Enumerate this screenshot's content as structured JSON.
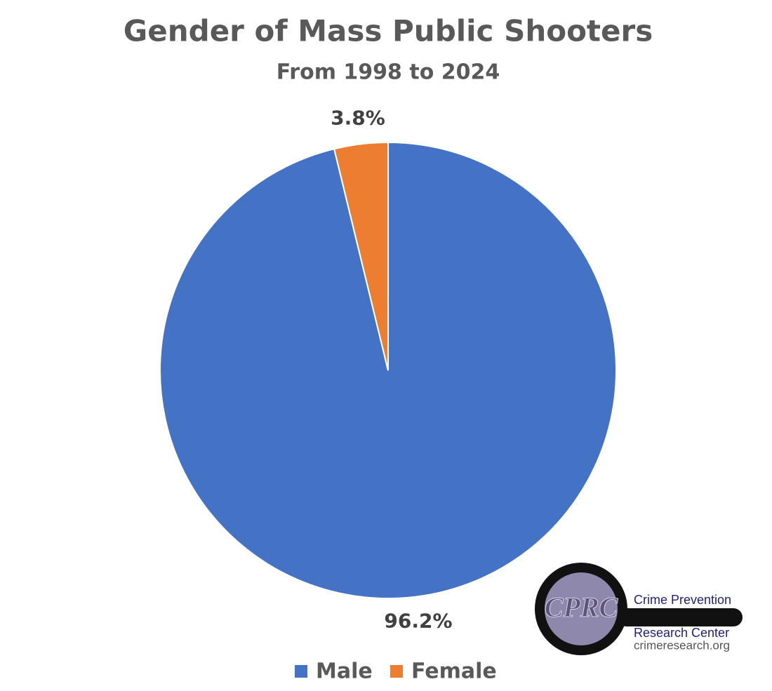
{
  "chart_data": {
    "type": "pie",
    "title": "Gender of Mass Public Shooters",
    "subtitle": "From 1998 to 2024",
    "categories": [
      "Male",
      "Female"
    ],
    "values": [
      96.2,
      3.8
    ],
    "value_labels": [
      "96.2%",
      "3.8%"
    ],
    "colors": [
      "#4472c4",
      "#ed7d31"
    ],
    "legend": "bottom"
  },
  "logo": {
    "mark": "CPRC",
    "name_line1": "Crime Prevention",
    "name_line2": "Research Center",
    "url": "crimeresearch.org"
  }
}
